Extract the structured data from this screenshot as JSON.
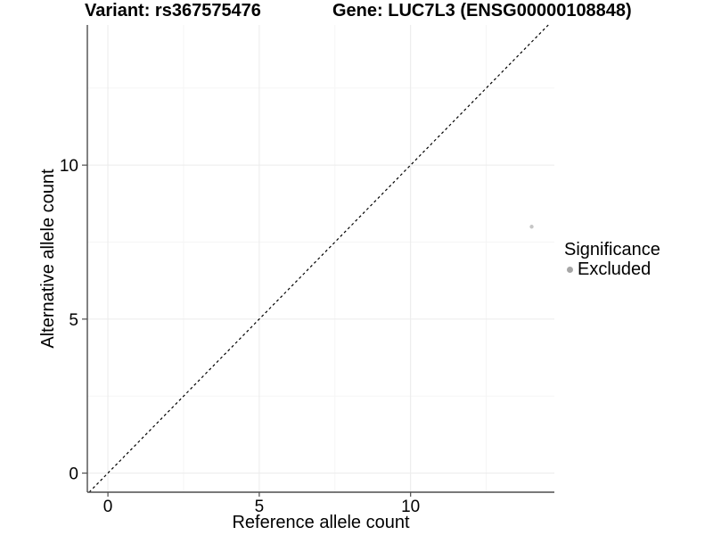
{
  "page": {
    "background": "#ffffff"
  },
  "titles": {
    "variant": "Variant: rs367575476",
    "gene": "Gene: LUC7L3 (ENSG00000108848)"
  },
  "legend": {
    "title": "Significance",
    "position": "right",
    "items": [
      {
        "label": "Excluded",
        "color": "#a6a6a6"
      }
    ]
  },
  "chart_data": {
    "type": "scatter",
    "title": "Variant: rs367575476   Gene: LUC7L3 (ENSG00000108848)",
    "xlabel": "Reference allele count",
    "ylabel": "Alternative allele count",
    "xlim": [
      -0.68,
      14.75
    ],
    "ylim": [
      -0.62,
      14.55
    ],
    "xticks": [
      0,
      5,
      10
    ],
    "yticks": [
      0,
      5,
      10
    ],
    "minor_gridlines": [
      2.5,
      7.5,
      12.5
    ],
    "grid": "on",
    "legend_position": "right",
    "series": [
      {
        "name": "Excluded",
        "points": [
          {
            "x": 14,
            "y": 8
          }
        ],
        "color": "#c6c6c6",
        "point_radius": 2.2
      }
    ],
    "reference_line": {
      "kind": "identity",
      "linestyle": "dashed",
      "color": "#000000"
    },
    "colors": {
      "axis_line": "#4d4d4d",
      "grid_major": "#ebebeb",
      "grid_minor": "#f5f5f5",
      "text": "#000000"
    }
  }
}
